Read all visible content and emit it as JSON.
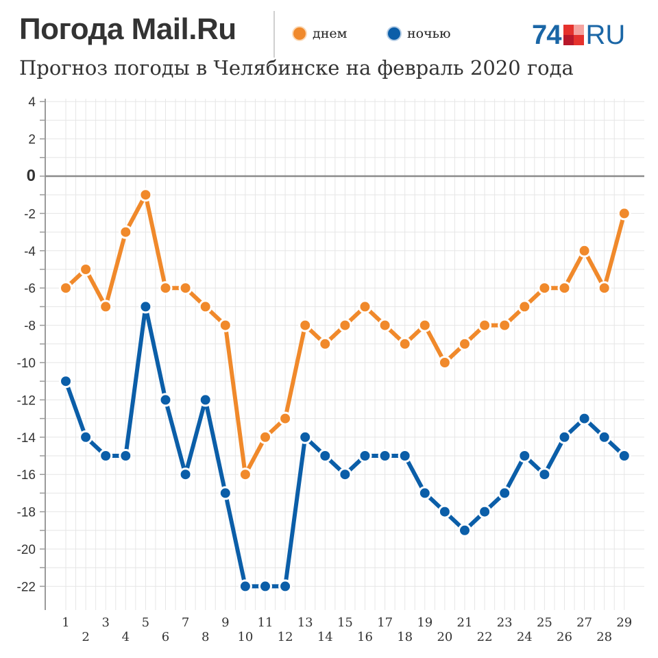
{
  "header": {
    "brand": "Погода Mail.Ru",
    "subtitle": "Прогноз погоды в Челябинске на февраль 2020 года",
    "logo_number": "74",
    "logo_suffix": "RU",
    "logo_colors": [
      "#e5322d",
      "#f4a39f",
      "#b8182a",
      "#e5322d"
    ]
  },
  "legend": [
    {
      "label": "днем",
      "color": "#f0892b"
    },
    {
      "label": "ночью",
      "color": "#0b5ea8"
    }
  ],
  "chart_data": {
    "type": "line",
    "title": "Прогноз погоды в Челябинске на февраль 2020 года",
    "xlabel": "",
    "ylabel": "",
    "x": [
      1,
      2,
      3,
      4,
      5,
      6,
      7,
      8,
      9,
      10,
      11,
      12,
      13,
      14,
      15,
      16,
      17,
      18,
      19,
      20,
      21,
      22,
      23,
      24,
      25,
      26,
      27,
      28,
      29
    ],
    "xlim": [
      1,
      29
    ],
    "ylim": [
      -22,
      4
    ],
    "yticks": [
      4,
      2,
      0,
      -2,
      -4,
      -6,
      -8,
      -10,
      -12,
      -14,
      -16,
      -18,
      -20,
      -22
    ],
    "grid": true,
    "legend_position": "top",
    "series": [
      {
        "name": "днем",
        "color": "#f0892b",
        "values": [
          -6,
          -5,
          -7,
          -3,
          -1,
          -6,
          -6,
          -7,
          -8,
          -16,
          -14,
          -13,
          -8,
          -9,
          -8,
          -7,
          -8,
          -9,
          -8,
          -10,
          -9,
          -8,
          -8,
          -7,
          -6,
          -6,
          -4,
          -6,
          -2
        ]
      },
      {
        "name": "ночью",
        "color": "#0b5ea8",
        "values": [
          -11,
          -14,
          -15,
          -15,
          -7,
          -12,
          -16,
          -12,
          -17,
          -22,
          -22,
          -22,
          -14,
          -15,
          -16,
          -15,
          -15,
          -15,
          -17,
          -18,
          -19,
          -18,
          -17,
          -15,
          -16,
          -14,
          -13,
          -14,
          -15
        ]
      }
    ]
  }
}
